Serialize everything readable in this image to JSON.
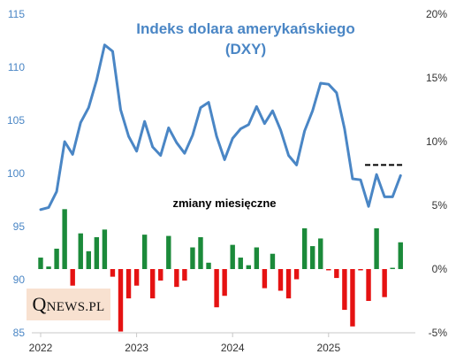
{
  "logo": {
    "initial": "Q",
    "rest": "NEWS.PL"
  },
  "chart_data": {
    "type": "line",
    "title": "Indeks dolara amerykańskiego",
    "subtitle": "(DXY)",
    "annotation": "zmiany miesięczne",
    "ylim_left": [
      85,
      115
    ],
    "ylim_right": [
      -5,
      20
    ],
    "yticks_left": [
      "85",
      "90",
      "95",
      "100",
      "105",
      "110",
      "115"
    ],
    "yticks_right": [
      "-5%",
      "0%",
      "5%",
      "10%",
      "15%",
      "20%"
    ],
    "xticks": [
      "2022",
      "2023",
      "2024",
      "2025"
    ],
    "x": [
      "2022-01",
      "2022-02",
      "2022-03",
      "2022-04",
      "2022-05",
      "2022-06",
      "2022-07",
      "2022-08",
      "2022-09",
      "2022-10",
      "2022-11",
      "2022-12",
      "2023-01",
      "2023-02",
      "2023-03",
      "2023-04",
      "2023-05",
      "2023-06",
      "2023-07",
      "2023-08",
      "2023-09",
      "2023-10",
      "2023-11",
      "2023-12",
      "2024-01",
      "2024-02",
      "2024-03",
      "2024-04",
      "2024-05",
      "2024-06",
      "2024-07",
      "2024-08",
      "2024-09",
      "2024-10",
      "2024-11",
      "2024-12",
      "2025-01",
      "2025-02",
      "2025-03",
      "2025-04",
      "2025-05",
      "2025-06",
      "2025-07",
      "2025-08",
      "2025-09",
      "2025-10"
    ],
    "series": [
      {
        "type": "line",
        "axis": "left",
        "color": "#4a86c5",
        "values": [
          96.6,
          96.8,
          98.3,
          103.0,
          101.8,
          104.8,
          106.2,
          108.8,
          112.1,
          111.5,
          106.0,
          103.5,
          102.1,
          104.9,
          102.5,
          101.7,
          104.3,
          102.9,
          101.9,
          103.6,
          106.2,
          106.7,
          103.5,
          101.3,
          103.3,
          104.2,
          104.6,
          106.3,
          104.7,
          105.9,
          104.1,
          101.7,
          100.8,
          104.0,
          105.9,
          108.5,
          108.4,
          107.6,
          104.2,
          99.5,
          99.4,
          96.9,
          99.9,
          97.8,
          97.8,
          99.8
        ]
      },
      {
        "type": "bar",
        "axis": "right",
        "positive_color": "#1b8a3a",
        "negative_color": "#e51212",
        "values": [
          0.9,
          0.2,
          1.6,
          4.7,
          -1.3,
          2.8,
          1.4,
          2.5,
          3.1,
          -0.6,
          -4.9,
          -2.3,
          -1.3,
          2.7,
          -2.3,
          -0.9,
          2.6,
          -1.4,
          -0.9,
          1.7,
          2.5,
          0.5,
          -3.0,
          -2.1,
          1.9,
          0.9,
          0.3,
          1.7,
          -1.5,
          1.2,
          -1.7,
          -2.3,
          -0.8,
          3.2,
          1.8,
          2.4,
          -0.1,
          -0.7,
          -3.2,
          -4.5,
          -0.1,
          -2.5,
          3.2,
          -2.2,
          0.1,
          2.1
        ]
      },
      {
        "type": "reference-line",
        "axis": "left",
        "style": "dashed",
        "color": "#000000",
        "value": 100.8,
        "from": "2025-06",
        "to": "2025-10"
      }
    ],
    "grid": false
  }
}
